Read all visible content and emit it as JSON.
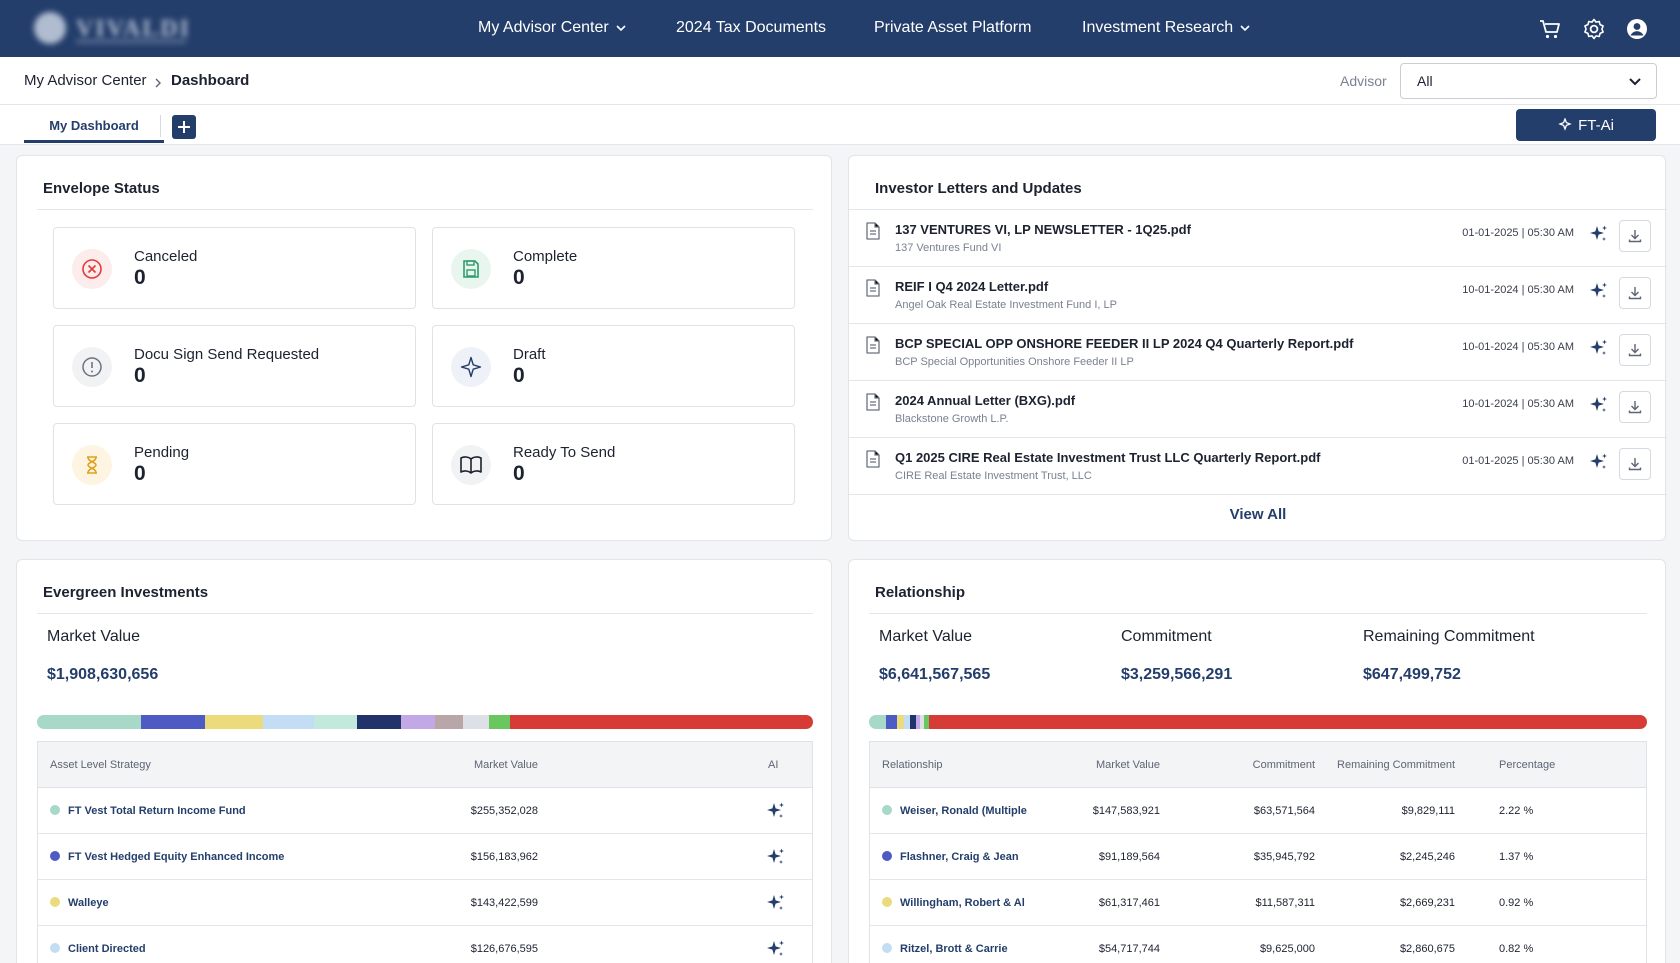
{
  "nav": {
    "items": [
      "My Advisor Center",
      "2024 Tax Documents",
      "Private Asset Platform",
      "Investment Research"
    ],
    "icons": [
      "cart-icon",
      "gear-icon",
      "user-globe-icon"
    ]
  },
  "breadcrumb": {
    "parent": "My Advisor Center",
    "current": "Dashboard"
  },
  "advisor": {
    "label": "Advisor",
    "value": "All"
  },
  "tabs": {
    "active": "My Dashboard",
    "ftai_label": "FT-Ai"
  },
  "envelope": {
    "title": "Envelope Status",
    "tiles": [
      {
        "label": "Canceled",
        "value": "0",
        "icon": "x-circle-icon",
        "color": "#e23b3b"
      },
      {
        "label": "Complete",
        "value": "0",
        "icon": "save-icon",
        "color": "#2e9c6a"
      },
      {
        "label": "Docu Sign Send Requested",
        "value": "0",
        "icon": "alert-circle-icon",
        "color": "#6b7280"
      },
      {
        "label": "Draft",
        "value": "0",
        "icon": "sparkle-icon",
        "color": "#243e6b"
      },
      {
        "label": "Pending",
        "value": "0",
        "icon": "hourglass-icon",
        "color": "#e0a21e"
      },
      {
        "label": "Ready To Send",
        "value": "0",
        "icon": "book-open-icon",
        "color": "#1d2230"
      }
    ]
  },
  "letters": {
    "title": "Investor Letters and Updates",
    "items": [
      {
        "title": "137 VENTURES VI, LP NEWSLETTER - 1Q25.pdf",
        "sub": "137 Ventures Fund VI",
        "date": "01-01-2025 | 05:30 AM"
      },
      {
        "title": "REIF I Q4 2024 Letter.pdf",
        "sub": "Angel Oak Real Estate Investment Fund I, LP",
        "date": "10-01-2024 | 05:30 AM"
      },
      {
        "title": "BCP SPECIAL OPP ONSHORE FEEDER II LP 2024 Q4 Quarterly Report.pdf",
        "sub": "BCP Special Opportunities Onshore Feeder II LP",
        "date": "10-01-2024 | 05:30 AM"
      },
      {
        "title": "2024 Annual Letter (BXG).pdf",
        "sub": "Blackstone Growth L.P.",
        "date": "10-01-2024 | 05:30 AM"
      },
      {
        "title": "Q1 2025 CIRE Real Estate Investment Trust LLC Quarterly Report.pdf",
        "sub": "CIRE Real Estate Investment Trust, LLC",
        "date": "01-01-2025 | 05:30 AM"
      }
    ],
    "view_all": "View All"
  },
  "evergreen": {
    "title": "Evergreen Investments",
    "market_value_label": "Market Value",
    "market_value": "$1,908,630,656",
    "bar_segments": [
      {
        "color": "#a7d8c8",
        "share": 13.4
      },
      {
        "color": "#4e5bc4",
        "share": 8.2
      },
      {
        "color": "#ecdb7c",
        "share": 7.5
      },
      {
        "color": "#c3ddf5",
        "share": 6.6
      },
      {
        "color": "#c3e9dd",
        "share": 5.6
      },
      {
        "color": "#22336b",
        "share": 5.6
      },
      {
        "color": "#c2a8e4",
        "share": 4.4
      },
      {
        "color": "#b8a6a8",
        "share": 3.6
      },
      {
        "color": "#dde0e6",
        "share": 3.4
      },
      {
        "color": "#6ac760",
        "share": 2.7
      },
      {
        "color": "#d63b36",
        "share": 39.0
      }
    ],
    "columns": [
      "Asset Level Strategy",
      "Market Value",
      "AI"
    ],
    "rows": [
      {
        "name": "FT Vest Total Return Income Fund",
        "value": "$255,352,028",
        "color": "#a7d8c8"
      },
      {
        "name": "FT Vest Hedged Equity Enhanced Income",
        "value": "$156,183,962",
        "color": "#4e5bc4"
      },
      {
        "name": "Walleye",
        "value": "$143,422,599",
        "color": "#ecdb7c"
      },
      {
        "name": "Client Directed",
        "value": "$126,676,595",
        "color": "#c3ddf5"
      }
    ]
  },
  "relationship": {
    "title": "Relationship",
    "metrics": [
      {
        "label": "Market Value",
        "value": "$6,641,567,565"
      },
      {
        "label": "Commitment",
        "value": "$3,259,566,291"
      },
      {
        "label": "Remaining Commitment",
        "value": "$647,499,752"
      }
    ],
    "bar_segments": [
      {
        "color": "#a7d8c8",
        "share": 2.2
      },
      {
        "color": "#4e5bc4",
        "share": 1.4
      },
      {
        "color": "#ecdb7c",
        "share": 0.9
      },
      {
        "color": "#c3ddf5",
        "share": 0.8
      },
      {
        "color": "#22336b",
        "share": 0.7
      },
      {
        "color": "#c2a8e4",
        "share": 0.6
      },
      {
        "color": "#dde0e6",
        "share": 0.5
      },
      {
        "color": "#6ac760",
        "share": 0.6
      },
      {
        "color": "#d63b36",
        "share": 92.3
      }
    ],
    "columns": [
      "Relationship",
      "Market Value",
      "Commitment",
      "Remaining Commitment",
      "Percentage"
    ],
    "rows": [
      {
        "name": "Weiser, Ronald (Multiple",
        "mv": "$147,583,921",
        "commit": "$63,571,564",
        "remaining": "$9,829,111",
        "pct": "2.22 %",
        "color": "#a7d8c8"
      },
      {
        "name": "Flashner, Craig & Jean",
        "mv": "$91,189,564",
        "commit": "$35,945,792",
        "remaining": "$2,245,246",
        "pct": "1.37 %",
        "color": "#4e5bc4"
      },
      {
        "name": "Willingham, Robert & Al",
        "mv": "$61,317,461",
        "commit": "$11,587,311",
        "remaining": "$2,669,231",
        "pct": "0.92 %",
        "color": "#ecdb7c"
      },
      {
        "name": "Ritzel, Brott & Carrie",
        "mv": "$54,717,744",
        "commit": "$9,625,000",
        "remaining": "$2,860,675",
        "pct": "0.82 %",
        "color": "#c3ddf5"
      }
    ]
  }
}
